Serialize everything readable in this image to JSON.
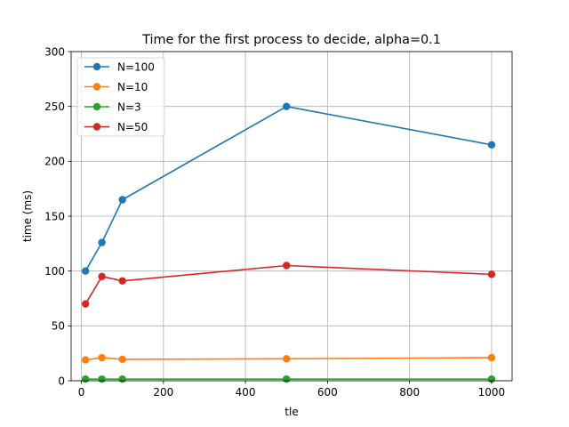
{
  "chart_data": {
    "type": "line",
    "title": "Time for the first process to decide, alpha=0.1",
    "xlabel": "tle",
    "ylabel": "time (ms)",
    "xlim": [
      -25,
      1050
    ],
    "ylim": [
      0,
      300
    ],
    "xticks": [
      0,
      200,
      400,
      600,
      800,
      1000
    ],
    "yticks": [
      0,
      50,
      100,
      150,
      200,
      250,
      300
    ],
    "grid": true,
    "legend_position": "upper left",
    "series": [
      {
        "name": "N=100",
        "color": "#1f77b4",
        "x": [
          10,
          50,
          100,
          500,
          1000
        ],
        "y": [
          100,
          126,
          165,
          250,
          215
        ]
      },
      {
        "name": "N=10",
        "color": "#ff7f0e",
        "x": [
          10,
          50,
          100,
          500,
          1000
        ],
        "y": [
          19,
          21,
          19.5,
          20,
          21
        ]
      },
      {
        "name": "N=3",
        "color": "#2ca02c",
        "x": [
          10,
          50,
          100,
          500,
          1000
        ],
        "y": [
          1.5,
          1.5,
          1.5,
          1.5,
          1.5
        ]
      },
      {
        "name": "N=50",
        "color": "#d62728",
        "x": [
          10,
          50,
          100,
          500,
          1000
        ],
        "y": [
          70,
          95,
          91,
          105,
          97
        ]
      }
    ]
  }
}
